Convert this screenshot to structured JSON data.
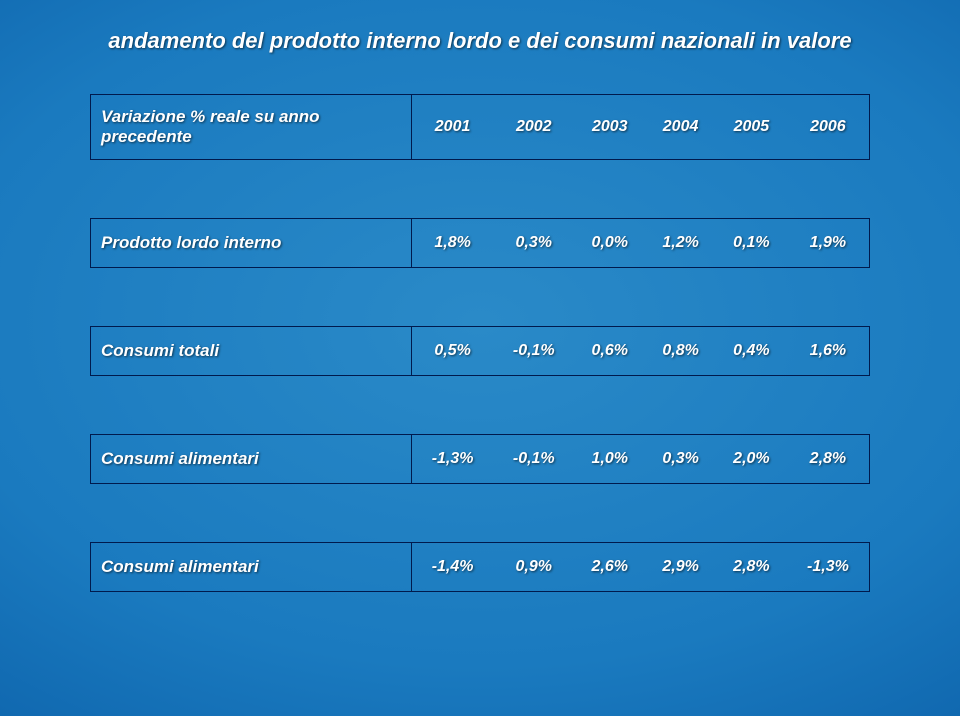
{
  "title": "andamento del prodotto interno lordo e dei consumi nazionali in valore",
  "header": {
    "label": "Variazione % reale  su anno precedente",
    "years": [
      "2001",
      "2002",
      "2003",
      "2004",
      "2005",
      "2006"
    ]
  },
  "rows": [
    {
      "label": "Prodotto lordo interno",
      "values": [
        "1,8%",
        "0,3%",
        "0,0%",
        "1,2%",
        "0,1%",
        "1,9%"
      ]
    },
    {
      "label": "Consumi totali",
      "values": [
        "0,5%",
        "-0,1%",
        "0,6%",
        "0,8%",
        "0,4%",
        "1,6%"
      ]
    },
    {
      "label": "Consumi alimentari",
      "values": [
        "-1,3%",
        "-0,1%",
        "1,0%",
        "0,3%",
        "2,0%",
        "2,8%"
      ]
    },
    {
      "label": "Consumi alimentari",
      "values": [
        "-1,4%",
        "0,9%",
        "2,6%",
        "2,9%",
        "2,8%",
        "-1,3%"
      ]
    }
  ],
  "style": {
    "text_color": "#ffffff",
    "border_color": "#001a4d",
    "bg_gradient_inner": "#2a8ac8",
    "bg_gradient_outer": "#044a8f",
    "title_fontsize": 22,
    "cell_fontsize": 16,
    "first_col_width": 310,
    "header_row_height": 64,
    "data_row_height": 48,
    "spacer_row_height": 58
  }
}
